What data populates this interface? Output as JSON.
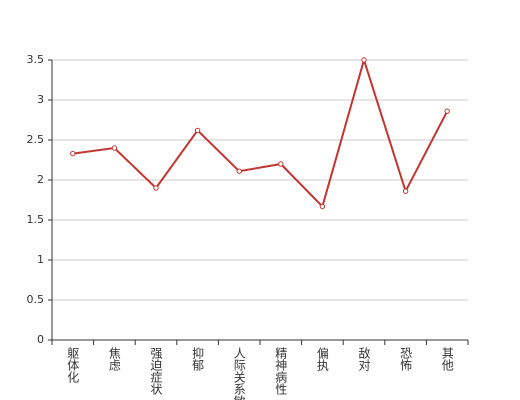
{
  "chart_data": {
    "type": "line",
    "categories": [
      "躯体化",
      "焦虑",
      "强迫症状",
      "抑郁",
      "人际关系敏感",
      "精神病性",
      "偏执",
      "敌对",
      "恐怖",
      "其他"
    ],
    "series": [
      {
        "color": "#c23531",
        "values": [
          2.33,
          2.4,
          1.9,
          2.62,
          2.11,
          2.2,
          1.67,
          3.5,
          1.86,
          2.86
        ]
      }
    ],
    "ylim": [
      0,
      3.5
    ],
    "yticks": [
      0,
      0.5,
      1,
      1.5,
      2,
      2.5,
      3,
      3.5
    ],
    "grid": true
  }
}
